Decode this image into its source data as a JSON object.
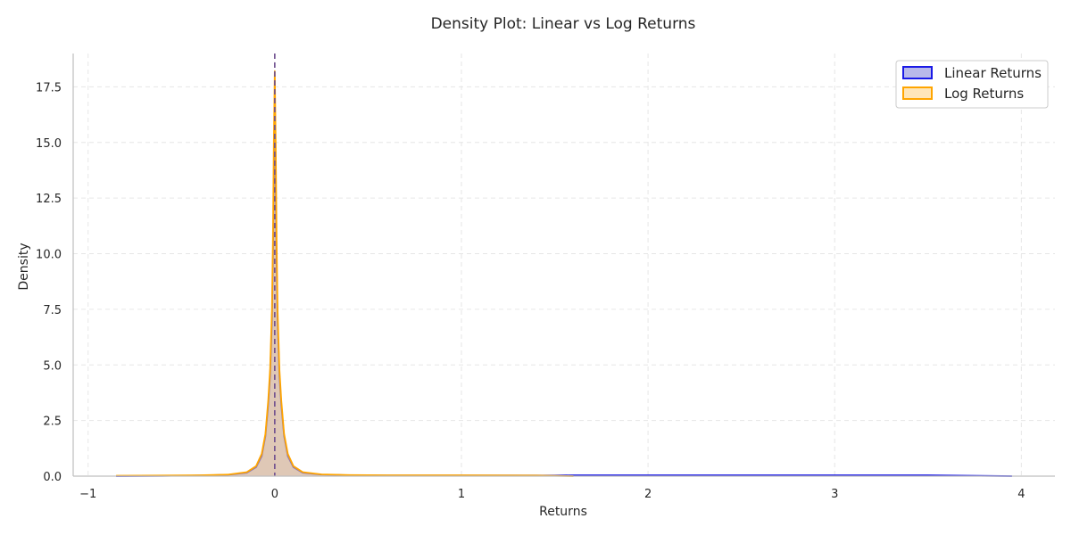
{
  "chart_data": {
    "type": "area",
    "title": "Density Plot: Linear vs Log Returns",
    "xlabel": "Returns",
    "ylabel": "Density",
    "xlim": [
      -1.08,
      4.18
    ],
    "ylim": [
      0,
      19.0
    ],
    "xticks": [
      -1,
      0,
      1,
      2,
      3,
      4
    ],
    "xtick_labels": [
      "−1",
      "0",
      "1",
      "2",
      "3",
      "4"
    ],
    "yticks": [
      0,
      2.5,
      5,
      7.5,
      10,
      12.5,
      15,
      17.5
    ],
    "ytick_labels": [
      "0.0",
      "2.5",
      "5.0",
      "7.5",
      "10.0",
      "12.5",
      "15.0",
      "17.5"
    ],
    "grid": true,
    "legend_position": "top-right",
    "reference_line_x": 0,
    "series": [
      {
        "name": "Linear Returns",
        "edge_color": "#1a1ae6",
        "fill_color": "#8080d9",
        "x": [
          -0.85,
          -0.6,
          -0.4,
          -0.25,
          -0.15,
          -0.1,
          -0.07,
          -0.05,
          -0.035,
          -0.025,
          -0.015,
          -0.01,
          -0.005,
          0,
          0.005,
          0.01,
          0.015,
          0.025,
          0.035,
          0.05,
          0.07,
          0.1,
          0.15,
          0.25,
          0.4,
          0.6,
          1.0,
          1.5,
          1.6,
          2.0,
          2.5,
          3.0,
          3.5,
          3.95
        ],
        "y": [
          0.0,
          0.01,
          0.03,
          0.06,
          0.15,
          0.4,
          0.9,
          1.8,
          3.2,
          4.5,
          7.0,
          9.5,
          13.0,
          15.5,
          13.0,
          9.5,
          7.0,
          4.5,
          3.2,
          1.8,
          0.9,
          0.4,
          0.15,
          0.07,
          0.04,
          0.03,
          0.03,
          0.03,
          0.04,
          0.04,
          0.04,
          0.04,
          0.04,
          0.0
        ]
      },
      {
        "name": "Log Returns",
        "edge_color": "#ffa500",
        "fill_color": "#ffd27f",
        "x": [
          -0.85,
          -0.6,
          -0.4,
          -0.25,
          -0.15,
          -0.1,
          -0.07,
          -0.05,
          -0.035,
          -0.025,
          -0.015,
          -0.01,
          -0.005,
          0,
          0.005,
          0.01,
          0.015,
          0.025,
          0.035,
          0.05,
          0.07,
          0.1,
          0.15,
          0.25,
          0.4,
          0.6,
          1.0,
          1.4,
          1.6
        ],
        "y": [
          0.02,
          0.03,
          0.04,
          0.07,
          0.18,
          0.45,
          1.0,
          1.9,
          3.4,
          4.8,
          7.5,
          10.5,
          15.0,
          18.2,
          15.0,
          10.5,
          7.5,
          4.8,
          3.4,
          1.9,
          1.0,
          0.45,
          0.18,
          0.08,
          0.05,
          0.04,
          0.04,
          0.03,
          0.0
        ]
      }
    ]
  }
}
